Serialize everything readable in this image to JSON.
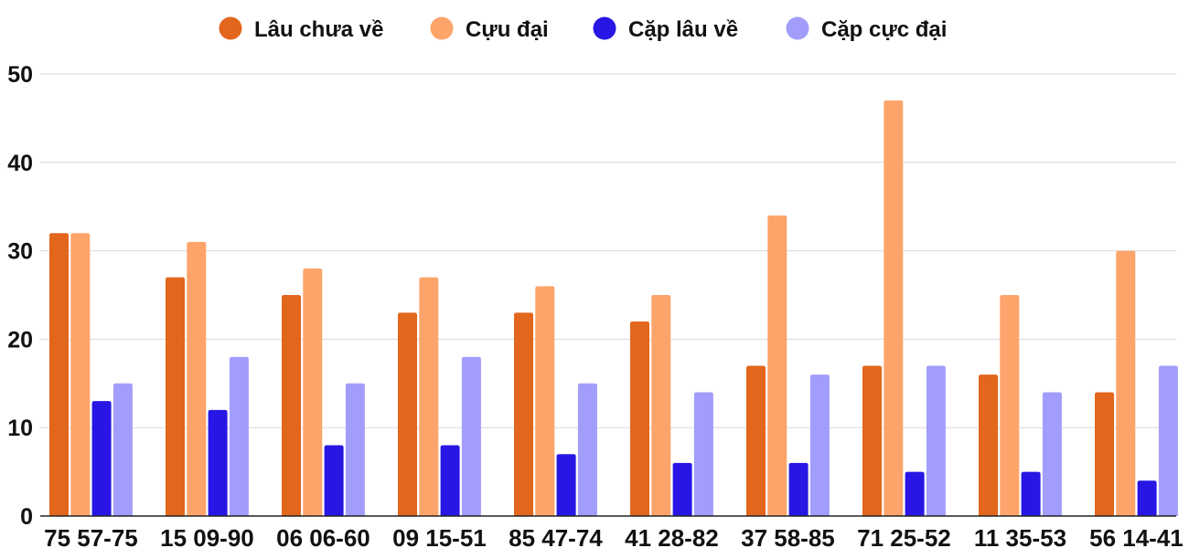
{
  "chart_data": {
    "type": "bar",
    "categories": [
      "75 57-75",
      "15 09-90",
      "06 06-60",
      "09 15-51",
      "85 47-74",
      "41 28-82",
      "37 58-85",
      "71 25-52",
      "11 35-53",
      "56 14-41"
    ],
    "series": [
      {
        "name": "Lâu chưa về",
        "color": "#e2661b",
        "values": [
          32,
          27,
          25,
          23,
          23,
          22,
          17,
          17,
          16,
          14
        ]
      },
      {
        "name": "Cựu đại",
        "color": "#fda46b",
        "values": [
          32,
          31,
          28,
          27,
          26,
          25,
          34,
          47,
          25,
          30
        ]
      },
      {
        "name": "Cặp lâu về",
        "color": "#2716e4",
        "values": [
          13,
          12,
          8,
          8,
          7,
          6,
          6,
          5,
          5,
          4
        ]
      },
      {
        "name": "Cặp cực đại",
        "color": "#a29dfb",
        "values": [
          15,
          18,
          15,
          18,
          15,
          14,
          16,
          17,
          14,
          17
        ]
      }
    ],
    "yticks": [
      0,
      10,
      20,
      30,
      40,
      50
    ],
    "ylim": [
      0,
      50
    ],
    "grid": true,
    "legend_position": "top-center"
  }
}
